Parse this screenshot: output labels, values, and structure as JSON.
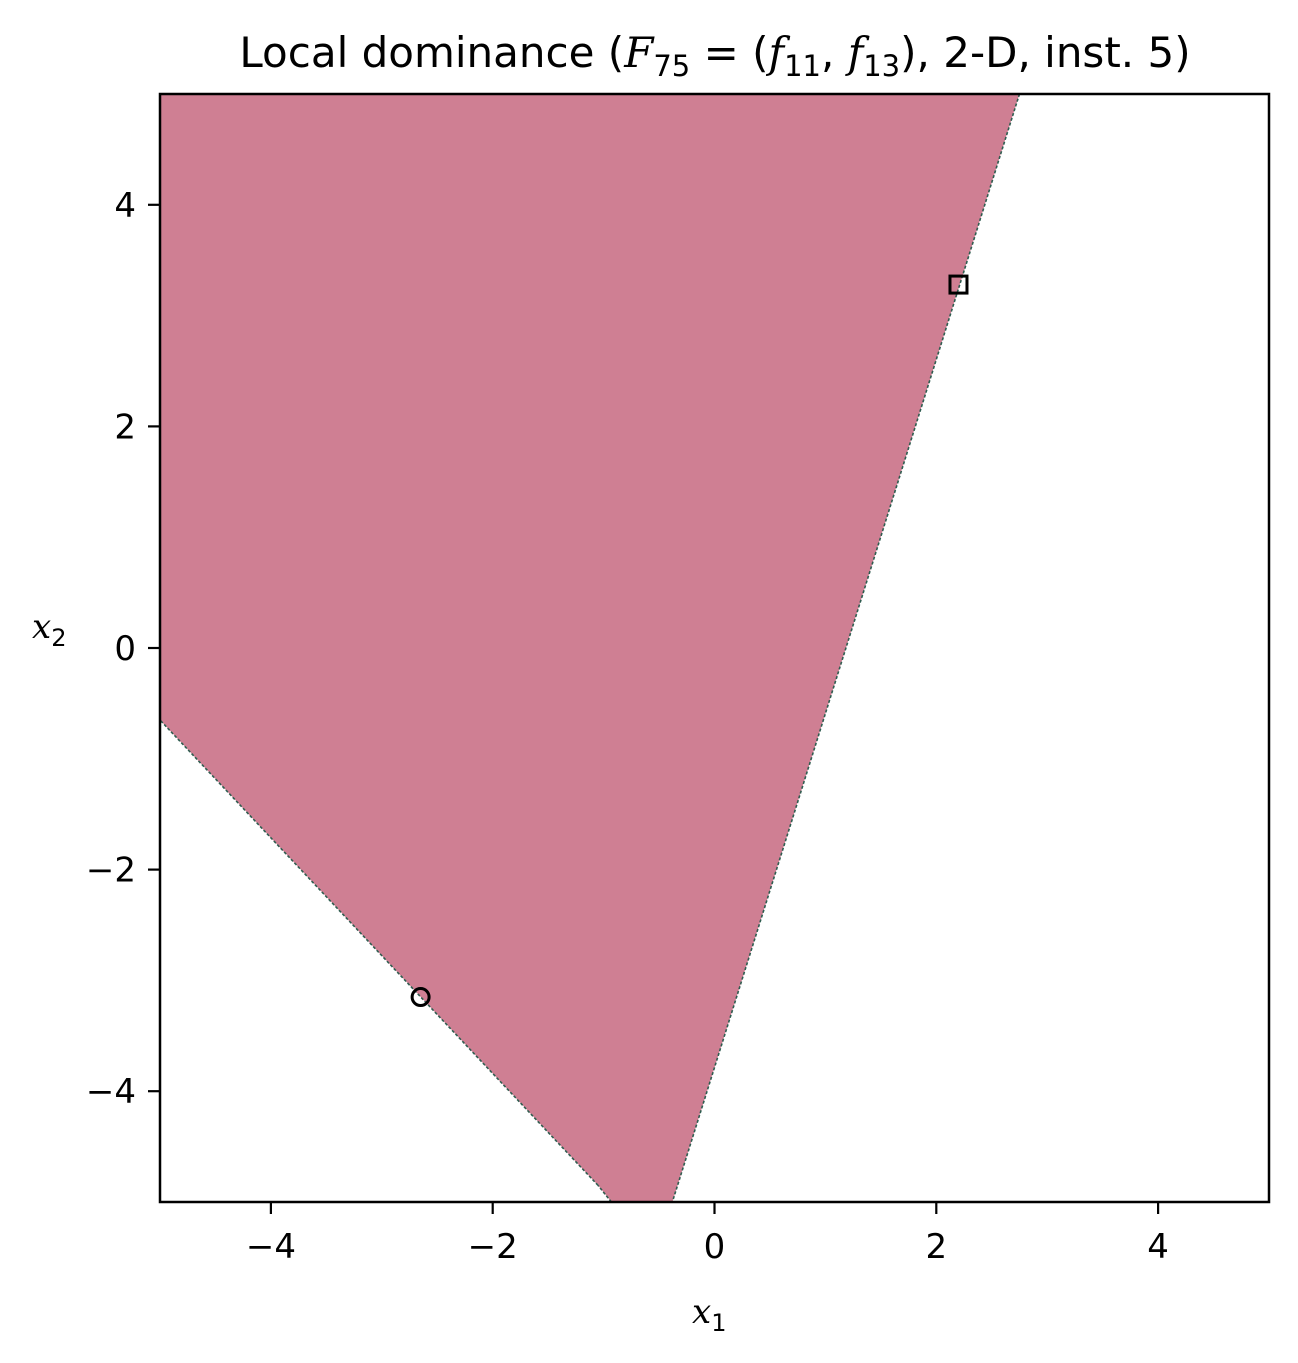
{
  "chart_data": {
    "type": "heatmap",
    "title": {
      "prefix": "Local dominance (",
      "F_symbol": "F",
      "F_subscript": "75",
      "equals": " = (",
      "f1_symbol": "f",
      "f1_subscript": "11",
      "comma": ", ",
      "f2_symbol": "f",
      "f2_subscript": "13",
      "suffix": "), 2-D, inst. 5)"
    },
    "xlabel": {
      "symbol": "x",
      "subscript": "1"
    },
    "ylabel": {
      "symbol": "x",
      "subscript": "2"
    },
    "xlim": [
      -5,
      5
    ],
    "ylim": [
      -5,
      5
    ],
    "xticks": [
      -4,
      -2,
      0,
      2,
      4
    ],
    "yticks": [
      -4,
      -2,
      0,
      2,
      4
    ],
    "tick_labels_x": [
      "−4",
      "−2",
      "0",
      "2",
      "4"
    ],
    "tick_labels_y": [
      "−4",
      "−2",
      "0",
      "2",
      "4"
    ],
    "grid": false,
    "region": {
      "color": "#cf7f93",
      "boundary_color": "#2f5d50",
      "polygon": [
        [
          -5,
          5
        ],
        [
          2.75,
          5
        ],
        [
          -0.38,
          -5
        ],
        [
          -0.93,
          -5
        ],
        [
          -1.05,
          -4.85
        ],
        [
          -5,
          -0.65
        ]
      ]
    },
    "markers": [
      {
        "shape": "circle",
        "x": -2.65,
        "y": -3.15
      },
      {
        "shape": "square",
        "x": 2.2,
        "y": 3.28
      }
    ]
  }
}
